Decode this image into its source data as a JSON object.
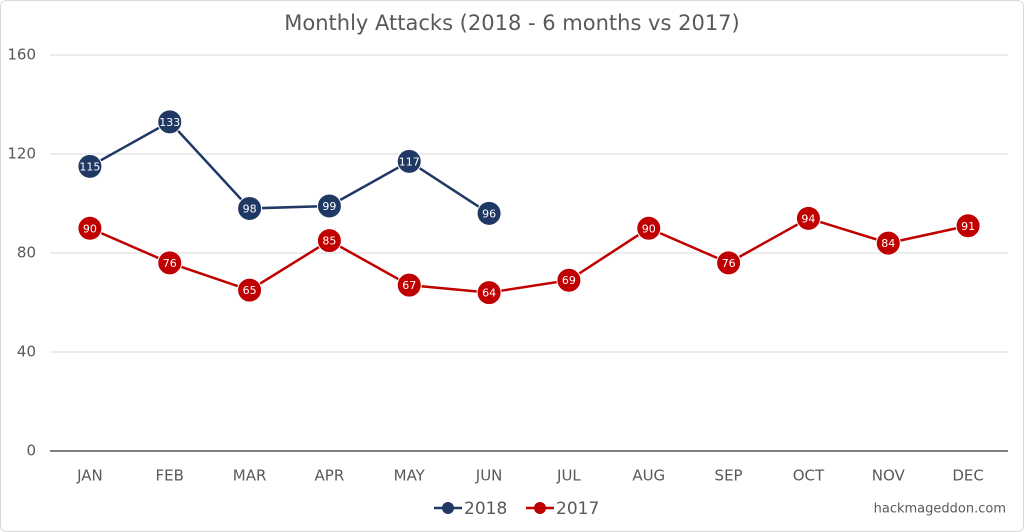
{
  "chart_data": {
    "type": "line",
    "title": "Monthly Attacks (2018 - 6 months vs 2017)",
    "categories": [
      "JAN",
      "FEB",
      "MAR",
      "APR",
      "MAY",
      "JUN",
      "JUL",
      "AUG",
      "SEP",
      "OCT",
      "NOV",
      "DEC"
    ],
    "series": [
      {
        "name": "2018",
        "color": "#203864",
        "values": [
          115,
          133,
          98,
          99,
          117,
          96,
          null,
          null,
          null,
          null,
          null,
          null
        ]
      },
      {
        "name": "2017",
        "color": "#c00000",
        "values": [
          90,
          76,
          65,
          85,
          67,
          64,
          69,
          90,
          76,
          94,
          84,
          91
        ]
      }
    ],
    "ylim": [
      0,
      160
    ],
    "yticks": [
      0,
      40,
      80,
      120,
      160
    ],
    "grid": true,
    "legend": "bottom",
    "source": "hackmageddon.com"
  }
}
